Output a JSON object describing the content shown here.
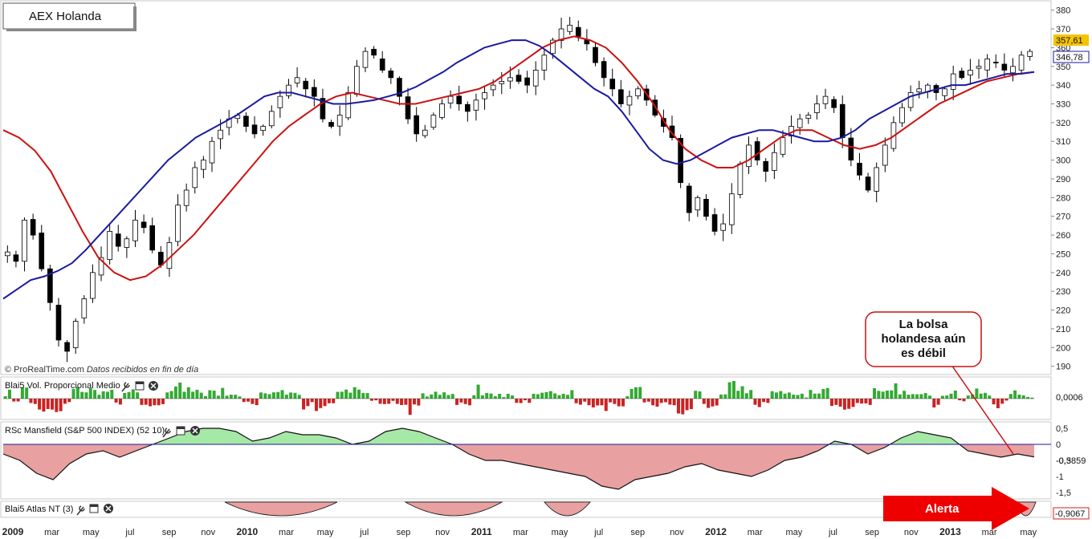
{
  "title": "AEX Holanda",
  "source_note": "© ProRealTime.com",
  "source_note_italic": "Datos recibidos en fin de día",
  "colors": {
    "up": "#ffffff",
    "down": "#000000",
    "ma_short": "#1a1aa0",
    "ma_long": "#cc1111",
    "vol_pos": "#33aa33",
    "vol_neg": "#cc2222",
    "rs_pos_fill": "#a6e8a6",
    "rs_neg_fill": "#e8a0a0",
    "price_badge": "#f5c400",
    "alert_arrow": "#ee0000"
  },
  "x_axis": {
    "labels": [
      "2009",
      "mar",
      "may",
      "jul",
      "sep",
      "nov",
      "2010",
      "mar",
      "may",
      "jul",
      "sep",
      "nov",
      "2011",
      "mar",
      "may",
      "jul",
      "sep",
      "nov",
      "2012",
      "mar",
      "may",
      "jul",
      "sep",
      "nov",
      "2013",
      "mar",
      "may"
    ],
    "bold": [
      "2009",
      "2010",
      "2011",
      "2012",
      "2013"
    ]
  },
  "price_axis": {
    "ticks": [
      190,
      200,
      210,
      220,
      230,
      240,
      250,
      260,
      270,
      280,
      290,
      300,
      310,
      320,
      330,
      340,
      350,
      360,
      370,
      380
    ],
    "range": [
      186,
      382
    ],
    "last_price": "357,61",
    "ma_value": "346,78"
  },
  "panels": {
    "volume": {
      "label": "Blai5 Vol. Proporcional Medio",
      "value": "0,0006"
    },
    "mansfield": {
      "label": "RSc Mansfield (S&P 500 INDEX) (52 10)",
      "value": "-0,3859",
      "ticks": [
        "0,5",
        "0",
        "-0,5",
        "-1",
        "-1,5"
      ],
      "tick_values": [
        0.5,
        0,
        -0.5,
        -1,
        -1.5
      ],
      "range": [
        -1.6,
        0.6
      ]
    },
    "atlas": {
      "label": "Blai5 Atlas NT (3)",
      "value": "-0,9067"
    }
  },
  "callout": {
    "lines": [
      "La bolsa",
      "holandesa aún",
      "es débil"
    ]
  },
  "alert_label": "Alerta",
  "chart_data": {
    "type": "candlestick",
    "title": "AEX Holanda",
    "x_labels": [
      "2009",
      "mar",
      "may",
      "jul",
      "sep",
      "nov",
      "2010",
      "mar",
      "may",
      "jul",
      "sep",
      "nov",
      "2011",
      "mar",
      "may",
      "jul",
      "sep",
      "nov",
      "2012",
      "mar",
      "may",
      "jul",
      "sep",
      "nov",
      "2013",
      "mar",
      "may"
    ],
    "ylim": [
      186,
      382
    ],
    "last_close": 357.61,
    "close_path": [
      251,
      246,
      268,
      260,
      242,
      224,
      204,
      198,
      214,
      226,
      240,
      248,
      262,
      254,
      258,
      268,
      264,
      252,
      244,
      256,
      276,
      284,
      296,
      300,
      310,
      316,
      322,
      324,
      318,
      314,
      318,
      326,
      334,
      340,
      344,
      338,
      334,
      322,
      318,
      324,
      336,
      350,
      358,
      356,
      348,
      344,
      334,
      322,
      314,
      316,
      324,
      330,
      334,
      330,
      326,
      332,
      336,
      340,
      342,
      344,
      342,
      340,
      348,
      356,
      364,
      370,
      372,
      366,
      362,
      352,
      344,
      338,
      330,
      334,
      338,
      332,
      324,
      318,
      312,
      288,
      272,
      280,
      270,
      262,
      266,
      282,
      298,
      308,
      300,
      294,
      304,
      312,
      318,
      322,
      324,
      330,
      334,
      328,
      312,
      300,
      292,
      284,
      296,
      308,
      320,
      328,
      336,
      338,
      340,
      336,
      338,
      346,
      344,
      348,
      350,
      354,
      352,
      348,
      350,
      356,
      358
    ],
    "ma_short": [
      226,
      231,
      236,
      238,
      241,
      245,
      252,
      260,
      268,
      276,
      284,
      292,
      300,
      306,
      312,
      316,
      320,
      324,
      329,
      334,
      336,
      336,
      334,
      332,
      330,
      330,
      331,
      332,
      334,
      336,
      339,
      343,
      347,
      352,
      356,
      360,
      362,
      364,
      364,
      361,
      356,
      350,
      344,
      338,
      334,
      326,
      316,
      306,
      300,
      298,
      300,
      304,
      308,
      312,
      314,
      316,
      316,
      314,
      312,
      310,
      310,
      312,
      316,
      322,
      326,
      330,
      334,
      336,
      338,
      340,
      340,
      342,
      344,
      346,
      346,
      347
    ],
    "ma_long": [
      316,
      312,
      305,
      294,
      278,
      262,
      248,
      240,
      236,
      238,
      244,
      252,
      260,
      270,
      280,
      290,
      300,
      310,
      318,
      324,
      330,
      334,
      336,
      334,
      332,
      330,
      330,
      332,
      334,
      336,
      338,
      342,
      348,
      354,
      360,
      364,
      366,
      364,
      360,
      352,
      342,
      330,
      316,
      306,
      300,
      296,
      296,
      300,
      306,
      312,
      316,
      316,
      312,
      308,
      306,
      308,
      312,
      318,
      324,
      330,
      334,
      338,
      342,
      344,
      346,
      347
    ],
    "mansfield_series": [
      -0.3,
      -0.5,
      -0.9,
      -1.1,
      -0.6,
      -0.3,
      -0.2,
      -0.4,
      -0.2,
      0,
      0.2,
      0.4,
      0.5,
      0.5,
      0.4,
      0.1,
      0.2,
      0.4,
      0.3,
      0.3,
      0.2,
      0,
      0.1,
      0.4,
      0.5,
      0.4,
      0.2,
      0,
      -0.3,
      -0.5,
      -0.5,
      -0.6,
      -0.7,
      -0.8,
      -0.9,
      -1,
      -1.3,
      -1.4,
      -1.1,
      -1,
      -0.9,
      -0.7,
      -0.6,
      -0.8,
      -0.9,
      -1,
      -0.8,
      -0.5,
      -0.4,
      -0.2,
      0.1,
      0,
      -0.3,
      -0.1,
      0.2,
      0.4,
      0.3,
      0.2,
      -0.2,
      -0.3,
      -0.4,
      -0.3,
      -0.39
    ]
  }
}
